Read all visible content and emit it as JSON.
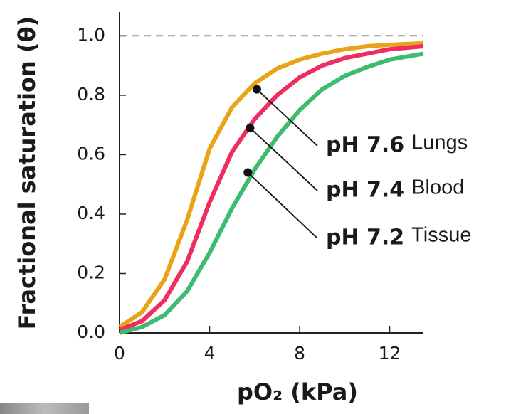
{
  "chart_data": {
    "type": "line",
    "x_label": "pO₂ (kPa)",
    "y_label": "Fractional saturation (θ)",
    "x": [
      0,
      1,
      2,
      3,
      4,
      5,
      6,
      7,
      8,
      9,
      10,
      11,
      12,
      13.5
    ],
    "series": [
      {
        "name": "pH 7.6",
        "label": "Lungs",
        "color": "#e8a317",
        "values": [
          0.02,
          0.07,
          0.18,
          0.38,
          0.62,
          0.76,
          0.84,
          0.89,
          0.92,
          0.94,
          0.955,
          0.965,
          0.97,
          0.975
        ],
        "marker": {
          "x": 6.1,
          "y": 0.82
        }
      },
      {
        "name": "pH 7.4",
        "label": "Blood",
        "color": "#ef2d5e",
        "values": [
          0.01,
          0.04,
          0.11,
          0.24,
          0.44,
          0.61,
          0.72,
          0.8,
          0.86,
          0.9,
          0.925,
          0.94,
          0.955,
          0.965
        ],
        "marker": {
          "x": 5.8,
          "y": 0.69
        }
      },
      {
        "name": "pH 7.2",
        "label": "Tissue",
        "color": "#3dbb6e",
        "values": [
          0.0,
          0.02,
          0.06,
          0.14,
          0.27,
          0.42,
          0.55,
          0.66,
          0.75,
          0.82,
          0.865,
          0.895,
          0.92,
          0.94
        ],
        "marker": {
          "x": 5.7,
          "y": 0.54
        }
      }
    ],
    "xlim": [
      0,
      13.5
    ],
    "ylim": [
      0,
      1.08
    ],
    "xticks": [
      0,
      4,
      8,
      12
    ],
    "yticks": [
      {
        "value": 0,
        "label": "0.0"
      },
      0.2,
      0.4,
      0.6,
      0.8,
      {
        "value": 1,
        "label": "1.0"
      }
    ],
    "reference_line": 1
  }
}
